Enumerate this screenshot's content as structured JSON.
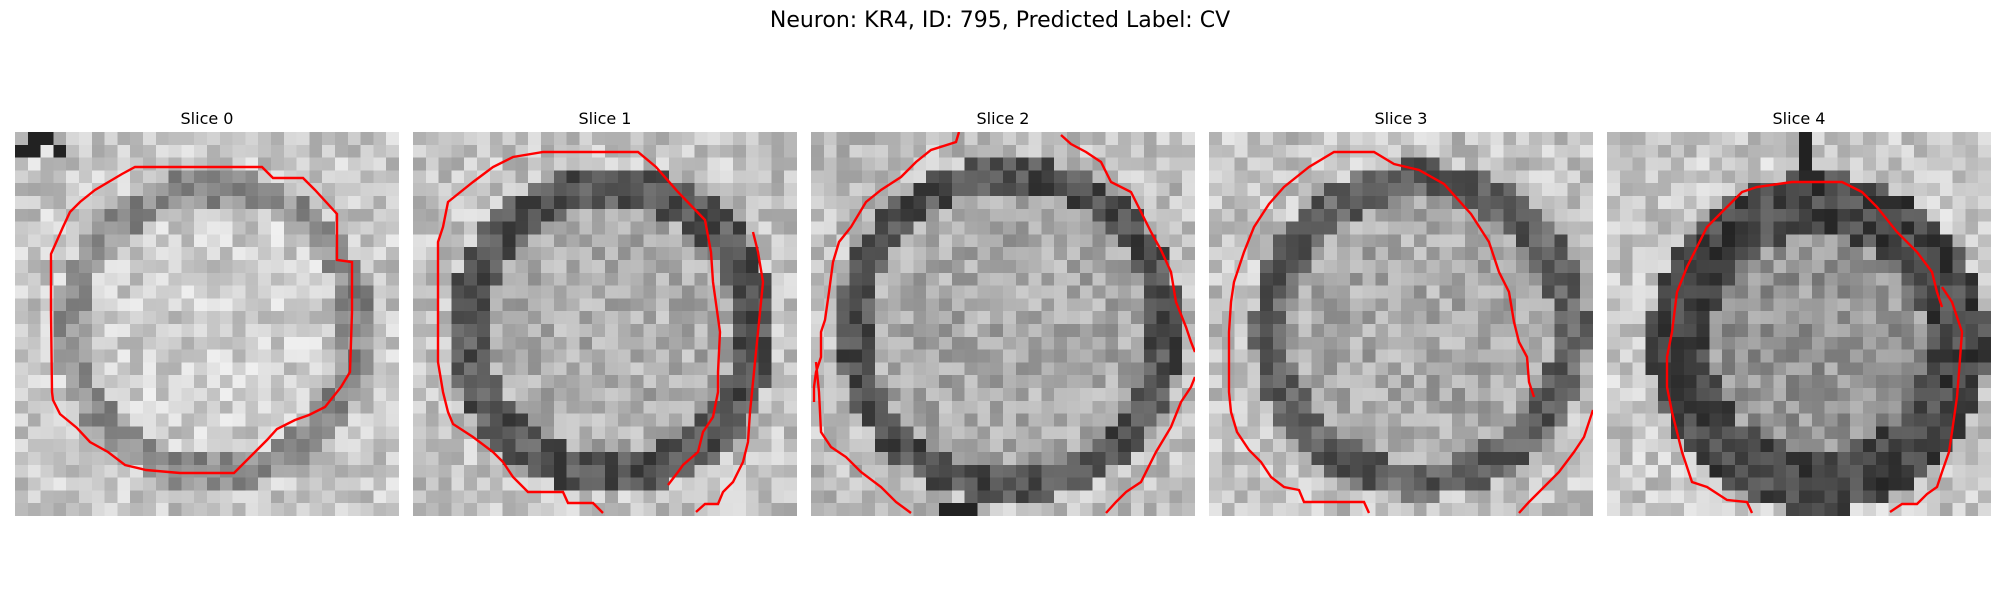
{
  "figure": {
    "title": "Neuron: KR4, ID: 795, Predicted Label: CV"
  },
  "panels": [
    {
      "title": "Slice 0"
    },
    {
      "title": "Slice 1"
    },
    {
      "title": "Slice 2"
    },
    {
      "title": "Slice 3"
    },
    {
      "title": "Slice 4"
    }
  ],
  "colors": {
    "contour": "#ff0000"
  }
}
